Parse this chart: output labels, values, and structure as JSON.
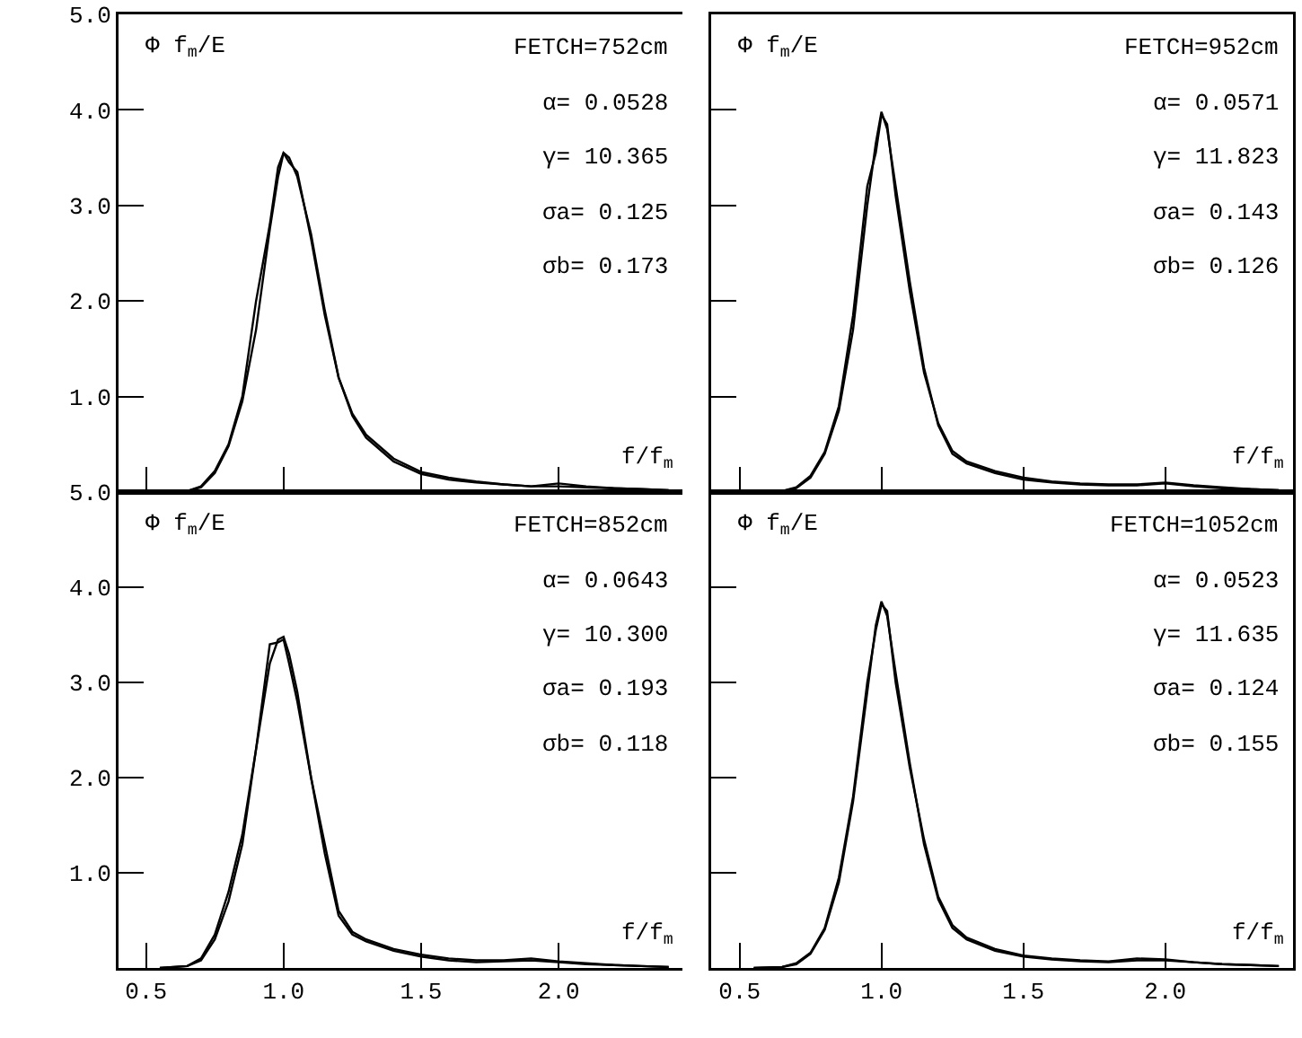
{
  "chart_data": [
    {
      "type": "line",
      "ylabel": "Φ f$_{m}$/E",
      "xlabel": "f/f$_{m}$",
      "annotations": [
        "FETCH=752cm",
        "α= 0.0528",
        "γ= 10.365",
        "σa= 0.125",
        "σb= 0.173"
      ],
      "tick_labels": "y",
      "xlim": [
        0.4,
        2.45
      ],
      "ylim": [
        0,
        5
      ],
      "xticks": [
        {
          "value": 0.5,
          "label": null
        },
        {
          "value": 1,
          "label": null
        },
        {
          "value": 1.5,
          "label": null
        },
        {
          "value": 2,
          "label": null
        }
      ],
      "yticks": [
        {
          "value": 1,
          "label": "1.0"
        },
        {
          "value": 2,
          "label": "2.0"
        },
        {
          "value": 3,
          "label": "3.0"
        },
        {
          "value": 4,
          "label": "4.0"
        },
        {
          "value": 5,
          "label": "5.0"
        }
      ],
      "x": [
        0.55,
        0.65,
        0.7,
        0.75,
        0.8,
        0.85,
        0.9,
        0.95,
        0.98,
        1.0,
        1.02,
        1.05,
        1.1,
        1.15,
        1.2,
        1.25,
        1.3,
        1.4,
        1.5,
        1.6,
        1.7,
        1.8,
        1.9,
        2.0,
        2.1,
        2.2,
        2.3,
        2.4
      ],
      "series": [
        {
          "color": "#000000",
          "values": [
            0,
            0.01,
            0.05,
            0.2,
            0.48,
            0.95,
            1.7,
            2.75,
            3.3,
            3.55,
            3.5,
            3.3,
            2.7,
            1.9,
            1.2,
            0.8,
            0.57,
            0.32,
            0.19,
            0.13,
            0.1,
            0.08,
            0.06,
            0.06,
            0.05,
            0.04,
            0.03,
            0.02
          ]
        },
        {
          "color": "#000000",
          "values": [
            0,
            0.01,
            0.06,
            0.22,
            0.5,
            1.0,
            2.0,
            2.8,
            3.4,
            3.55,
            3.45,
            3.35,
            2.65,
            1.85,
            1.2,
            0.82,
            0.6,
            0.35,
            0.21,
            0.15,
            0.11,
            0.08,
            0.06,
            0.09,
            0.06,
            0.04,
            0.03,
            0.02
          ]
        }
      ]
    },
    {
      "type": "line",
      "ylabel": "Φ f$_{m}$/E",
      "xlabel": "f/f$_{m}$",
      "annotations": [
        "FETCH=952cm",
        "α= 0.0571",
        "γ= 11.823",
        "σa= 0.143",
        "σb= 0.126"
      ],
      "tick_labels": false,
      "xlim": [
        0.4,
        2.45
      ],
      "ylim": [
        0,
        5
      ],
      "xticks": [
        {
          "value": 0.5,
          "label": null
        },
        {
          "value": 1,
          "label": null
        },
        {
          "value": 1.5,
          "label": null
        },
        {
          "value": 2,
          "label": null
        }
      ],
      "yticks": [
        {
          "value": 1,
          "label": null
        },
        {
          "value": 2,
          "label": null
        },
        {
          "value": 3,
          "label": null
        },
        {
          "value": 4,
          "label": null
        },
        {
          "value": 5,
          "label": null
        }
      ],
      "x": [
        0.55,
        0.65,
        0.7,
        0.75,
        0.8,
        0.85,
        0.9,
        0.95,
        0.98,
        1.0,
        1.02,
        1.05,
        1.1,
        1.15,
        1.2,
        1.25,
        1.3,
        1.4,
        1.5,
        1.6,
        1.7,
        1.8,
        1.9,
        2.0,
        2.1,
        2.2,
        2.3,
        2.4
      ],
      "series": [
        {
          "color": "#000000",
          "values": [
            0,
            0.01,
            0.04,
            0.15,
            0.4,
            0.85,
            1.7,
            3.0,
            3.65,
            3.98,
            3.8,
            3.2,
            2.2,
            1.3,
            0.7,
            0.4,
            0.3,
            0.2,
            0.13,
            0.1,
            0.08,
            0.07,
            0.07,
            0.09,
            0.06,
            0.04,
            0.03,
            0.02
          ]
        },
        {
          "color": "#000000",
          "values": [
            0,
            0.01,
            0.05,
            0.17,
            0.42,
            0.9,
            1.85,
            3.2,
            3.55,
            3.95,
            3.85,
            3.1,
            2.1,
            1.25,
            0.72,
            0.43,
            0.32,
            0.22,
            0.15,
            0.11,
            0.09,
            0.08,
            0.08,
            0.1,
            0.07,
            0.05,
            0.03,
            0.02
          ]
        }
      ]
    },
    {
      "type": "line",
      "ylabel": "Φ f$_{m}$/E",
      "xlabel": "f/f$_{m}$",
      "annotations": [
        "FETCH=852cm",
        "α= 0.0643",
        "γ= 10.300",
        "σa= 0.193",
        "σb= 0.118"
      ],
      "xlim": [
        0.4,
        2.45
      ],
      "ylim": [
        0,
        5
      ],
      "xticks": [
        {
          "value": 0.5,
          "label": "0.5"
        },
        {
          "value": 1,
          "label": "1.0"
        },
        {
          "value": 1.5,
          "label": "1.5"
        },
        {
          "value": 2,
          "label": "2.0"
        }
      ],
      "yticks": [
        {
          "value": 1,
          "label": "1.0"
        },
        {
          "value": 2,
          "label": "2.0"
        },
        {
          "value": 3,
          "label": "3.0"
        },
        {
          "value": 4,
          "label": "4.0"
        },
        {
          "value": 5,
          "label": "5.0"
        }
      ],
      "x": [
        0.55,
        0.65,
        0.7,
        0.75,
        0.8,
        0.85,
        0.9,
        0.95,
        0.98,
        1.0,
        1.02,
        1.05,
        1.1,
        1.15,
        1.2,
        1.25,
        1.3,
        1.4,
        1.5,
        1.6,
        1.7,
        1.8,
        1.9,
        2.0,
        2.1,
        2.2,
        2.3,
        2.4
      ],
      "series": [
        {
          "color": "#000000",
          "values": [
            0,
            0.02,
            0.1,
            0.35,
            0.8,
            1.4,
            2.3,
            3.2,
            3.45,
            3.48,
            3.3,
            2.9,
            2.0,
            1.2,
            0.55,
            0.35,
            0.28,
            0.18,
            0.12,
            0.08,
            0.06,
            0.07,
            0.08,
            0.06,
            0.04,
            0.03,
            0.02,
            0.01
          ]
        },
        {
          "color": "#000000",
          "values": [
            0,
            0.02,
            0.08,
            0.3,
            0.7,
            1.3,
            2.3,
            3.4,
            3.42,
            3.45,
            3.2,
            2.8,
            2.0,
            1.3,
            0.6,
            0.38,
            0.3,
            0.2,
            0.14,
            0.1,
            0.08,
            0.08,
            0.1,
            0.07,
            0.05,
            0.03,
            0.02,
            0.01
          ]
        }
      ]
    },
    {
      "type": "line",
      "ylabel": "Φ f$_{m}$/E",
      "xlabel": "f/f$_{m}$",
      "annotations": [
        "FETCH=1052cm",
        "α= 0.0523",
        "γ= 11.635",
        "σa= 0.124",
        "σb= 0.155"
      ],
      "tick_labels": "x",
      "xlim": [
        0.4,
        2.45
      ],
      "ylim": [
        0,
        5
      ],
      "xticks": [
        {
          "value": 0.5,
          "label": "0.5"
        },
        {
          "value": 1,
          "label": "1.0"
        },
        {
          "value": 1.5,
          "label": "1.5"
        },
        {
          "value": 2,
          "label": "2.0"
        }
      ],
      "yticks": [
        {
          "value": 1,
          "label": null
        },
        {
          "value": 2,
          "label": null
        },
        {
          "value": 3,
          "label": null
        },
        {
          "value": 4,
          "label": null
        },
        {
          "value": 5,
          "label": null
        }
      ],
      "x": [
        0.55,
        0.65,
        0.7,
        0.75,
        0.8,
        0.85,
        0.9,
        0.95,
        0.98,
        1.0,
        1.02,
        1.05,
        1.1,
        1.15,
        1.2,
        1.25,
        1.3,
        1.4,
        1.5,
        1.6,
        1.7,
        1.8,
        1.9,
        2.0,
        2.1,
        2.2,
        2.3,
        2.4
      ],
      "series": [
        {
          "color": "#000000",
          "values": [
            0,
            0.01,
            0.04,
            0.15,
            0.4,
            0.9,
            1.75,
            2.9,
            3.6,
            3.85,
            3.7,
            3.1,
            2.15,
            1.3,
            0.72,
            0.42,
            0.3,
            0.18,
            0.12,
            0.09,
            0.07,
            0.06,
            0.08,
            0.08,
            0.06,
            0.04,
            0.03,
            0.02
          ]
        },
        {
          "color": "#000000",
          "values": [
            0,
            0.01,
            0.05,
            0.16,
            0.42,
            0.95,
            1.8,
            3.0,
            3.55,
            3.82,
            3.75,
            3.0,
            2.1,
            1.35,
            0.75,
            0.45,
            0.32,
            0.2,
            0.13,
            0.1,
            0.08,
            0.07,
            0.1,
            0.09,
            0.06,
            0.04,
            0.03,
            0.02
          ]
        }
      ]
    }
  ]
}
